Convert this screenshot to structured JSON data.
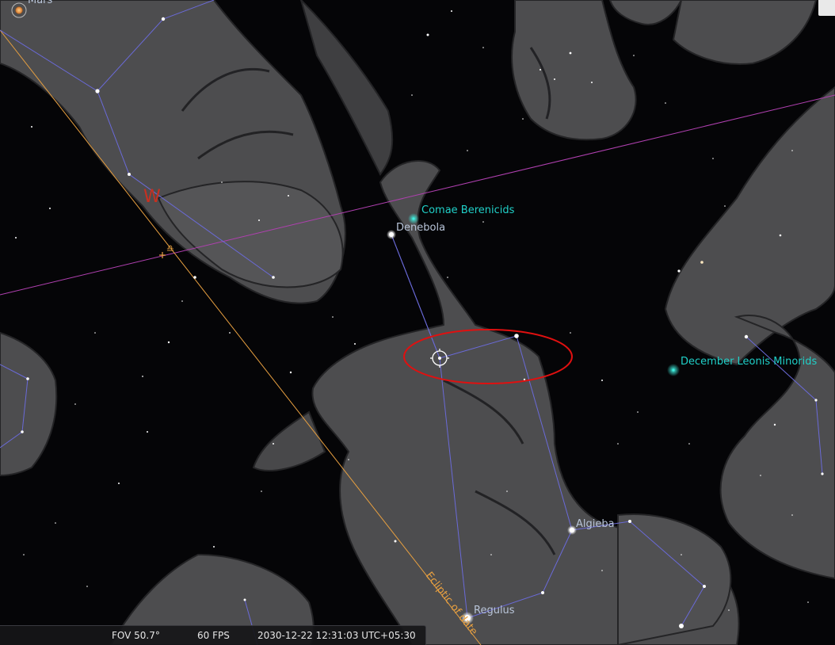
{
  "planets": {
    "mars": "Mars"
  },
  "stars": {
    "denebola": "Denebola",
    "algieba": "Algieba",
    "regulus": "Regulus"
  },
  "meteor_showers": {
    "comae": "Comae Berenicids",
    "december_lm": "December Leonis Minorids"
  },
  "lines": {
    "ecliptic_label": "Ecliptic of date"
  },
  "symbols": {
    "cardinal": "W",
    "libra": "♎"
  },
  "status_bar": {
    "fov": "FOV 50.7°",
    "fps": "60 FPS",
    "datetime": "2030-12-22 12:31:03 UTC+05:30"
  },
  "colors": {
    "constellation_line": "#6a6ad8",
    "ecliptic": "#e8a040",
    "equator": "#b040b0",
    "meteor_label": "#20d0c8",
    "star_label": "#b8c4d8",
    "cardinal": "#c83020",
    "selection_ellipse": "#e01010"
  }
}
